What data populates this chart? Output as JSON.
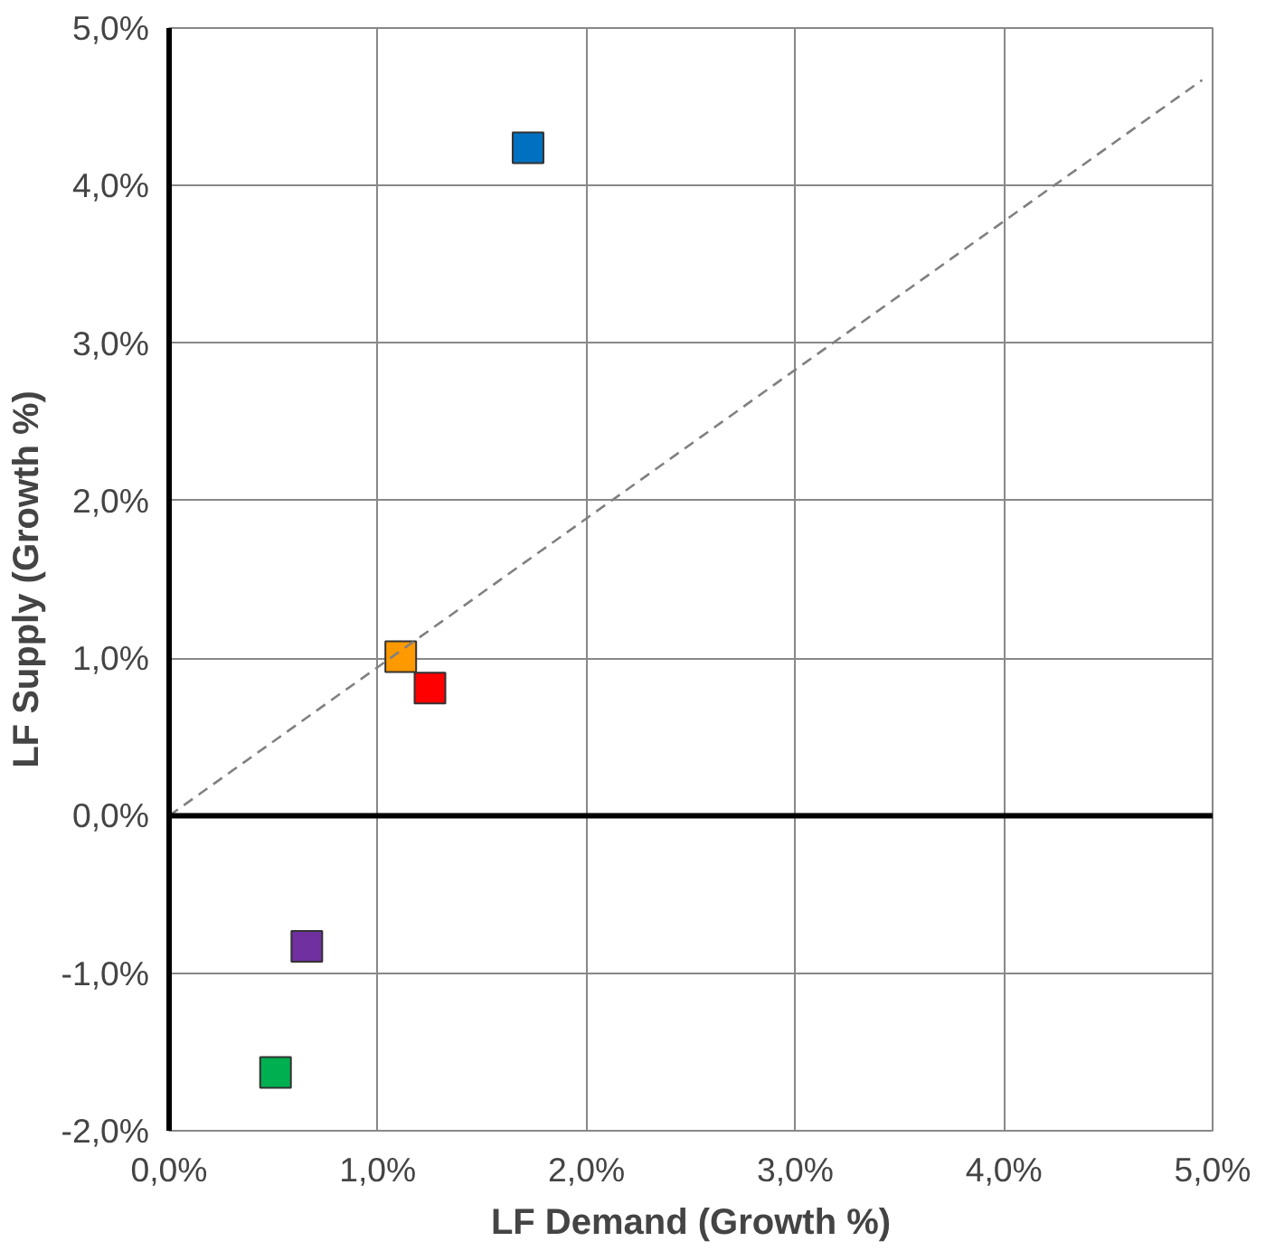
{
  "chart_data": {
    "type": "scatter",
    "xlabel": "LF Demand (Growth %)",
    "ylabel": "LF Supply (Growth %)",
    "xlim": [
      0,
      5
    ],
    "ylim": [
      -2,
      5
    ],
    "xticks": [
      {
        "value": 0,
        "label": "0,0%"
      },
      {
        "value": 1,
        "label": "1,0%"
      },
      {
        "value": 2,
        "label": "2,0%"
      },
      {
        "value": 3,
        "label": "3,0%"
      },
      {
        "value": 4,
        "label": "4,0%"
      },
      {
        "value": 5,
        "label": "5,0%"
      }
    ],
    "yticks": [
      {
        "value": -2,
        "label": "-2,0%"
      },
      {
        "value": -1,
        "label": "-1,0%"
      },
      {
        "value": 0,
        "label": "0,0%"
      },
      {
        "value": 1,
        "label": "1,0%"
      },
      {
        "value": 2,
        "label": "2,0%"
      },
      {
        "value": 3,
        "label": "3,0%"
      },
      {
        "value": 4,
        "label": "4,0%"
      },
      {
        "value": 5,
        "label": "5,0%"
      }
    ],
    "grid": true,
    "series": [
      {
        "marker": "square",
        "x": [
          1.72,
          1.11,
          1.25,
          0.66,
          0.51
        ],
        "values": [
          4.24,
          1.01,
          0.81,
          -0.83,
          -1.63
        ],
        "colors": [
          "#0070c0",
          "#ff9900",
          "#ff0000",
          "#7030a0",
          "#00b050"
        ]
      },
      {
        "type": "line",
        "x": [
          0,
          4.95
        ],
        "values": [
          0,
          4.67
        ],
        "color": "#808080",
        "line_style": "dashed"
      }
    ],
    "ref_lines": [
      {
        "axis": "y",
        "value": 0,
        "color": "#000000"
      }
    ]
  }
}
